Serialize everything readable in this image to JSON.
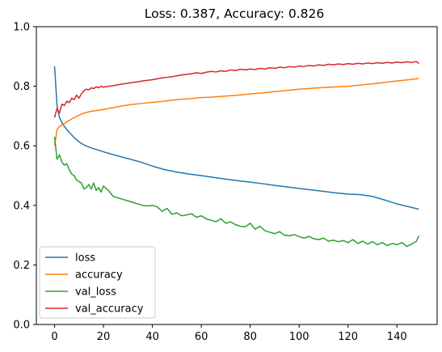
{
  "chart_data": {
    "type": "line",
    "title": "Loss: 0.387, Accuracy: 0.826",
    "xlabel": "",
    "ylabel": "",
    "xlim": [
      -7.45,
      156.45
    ],
    "ylim": [
      0.0,
      1.0
    ],
    "xticks": [
      0,
      20,
      40,
      60,
      80,
      100,
      120,
      140
    ],
    "yticks": [
      0.0,
      0.2,
      0.4,
      0.6,
      0.8,
      1.0
    ],
    "grid": false,
    "legend_position": "lower-left",
    "colors": {
      "loss": "#1f77b4",
      "accuracy": "#ff7f0e",
      "val_loss": "#2ca02c",
      "val_accuracy": "#d62728"
    },
    "series": [
      {
        "name": "loss",
        "x": [
          0,
          1,
          2,
          3,
          4,
          5,
          6,
          8,
          10,
          12,
          15,
          20,
          25,
          30,
          35,
          40,
          45,
          50,
          55,
          60,
          65,
          70,
          75,
          80,
          85,
          90,
          95,
          100,
          105,
          110,
          115,
          120,
          125,
          130,
          135,
          140,
          145,
          149
        ],
        "y": [
          0.867,
          0.735,
          0.695,
          0.678,
          0.665,
          0.655,
          0.645,
          0.628,
          0.613,
          0.603,
          0.593,
          0.58,
          0.568,
          0.557,
          0.546,
          0.532,
          0.52,
          0.512,
          0.505,
          0.5,
          0.494,
          0.488,
          0.483,
          0.478,
          0.473,
          0.467,
          0.462,
          0.457,
          0.452,
          0.447,
          0.442,
          0.438,
          0.436,
          0.43,
          0.418,
          0.405,
          0.395,
          0.387
        ]
      },
      {
        "name": "accuracy",
        "x": [
          0,
          1,
          2,
          3,
          4,
          5,
          6,
          8,
          10,
          12,
          15,
          20,
          25,
          30,
          35,
          40,
          45,
          50,
          55,
          60,
          65,
          70,
          75,
          80,
          85,
          90,
          95,
          100,
          105,
          110,
          115,
          120,
          125,
          130,
          135,
          140,
          145,
          149
        ],
        "y": [
          0.6,
          0.655,
          0.665,
          0.67,
          0.675,
          0.68,
          0.685,
          0.695,
          0.703,
          0.71,
          0.716,
          0.722,
          0.73,
          0.737,
          0.742,
          0.746,
          0.75,
          0.755,
          0.758,
          0.762,
          0.764,
          0.767,
          0.77,
          0.774,
          0.778,
          0.782,
          0.786,
          0.79,
          0.793,
          0.796,
          0.798,
          0.8,
          0.804,
          0.808,
          0.813,
          0.818,
          0.822,
          0.826
        ]
      },
      {
        "name": "val_loss",
        "x": [
          0,
          1,
          2,
          3,
          4,
          5,
          6,
          7,
          8,
          9,
          10,
          11,
          12,
          13,
          14,
          15,
          16,
          17,
          18,
          19,
          20,
          22,
          24,
          26,
          28,
          30,
          32,
          34,
          36,
          38,
          40,
          42,
          44,
          46,
          48,
          50,
          52,
          54,
          56,
          58,
          60,
          62,
          64,
          66,
          68,
          70,
          72,
          74,
          76,
          78,
          80,
          82,
          84,
          86,
          88,
          90,
          92,
          94,
          96,
          98,
          100,
          102,
          104,
          106,
          108,
          110,
          112,
          114,
          116,
          118,
          120,
          122,
          124,
          126,
          128,
          130,
          132,
          134,
          136,
          138,
          140,
          142,
          144,
          146,
          148,
          149
        ],
        "y": [
          0.63,
          0.555,
          0.57,
          0.545,
          0.535,
          0.54,
          0.52,
          0.505,
          0.5,
          0.485,
          0.48,
          0.475,
          0.455,
          0.46,
          0.47,
          0.455,
          0.475,
          0.45,
          0.46,
          0.445,
          0.465,
          0.45,
          0.43,
          0.425,
          0.42,
          0.415,
          0.41,
          0.405,
          0.4,
          0.398,
          0.4,
          0.395,
          0.38,
          0.39,
          0.37,
          0.375,
          0.365,
          0.368,
          0.372,
          0.36,
          0.365,
          0.355,
          0.35,
          0.345,
          0.355,
          0.34,
          0.345,
          0.335,
          0.33,
          0.328,
          0.34,
          0.32,
          0.33,
          0.315,
          0.31,
          0.305,
          0.312,
          0.3,
          0.298,
          0.302,
          0.295,
          0.29,
          0.296,
          0.288,
          0.285,
          0.29,
          0.28,
          0.283,
          0.278,
          0.282,
          0.275,
          0.285,
          0.272,
          0.28,
          0.27,
          0.278,
          0.268,
          0.275,
          0.265,
          0.272,
          0.268,
          0.275,
          0.262,
          0.27,
          0.28,
          0.298
        ]
      },
      {
        "name": "val_accuracy",
        "x": [
          0,
          1,
          2,
          3,
          4,
          5,
          6,
          7,
          8,
          9,
          10,
          11,
          12,
          13,
          14,
          15,
          16,
          17,
          18,
          19,
          20,
          22,
          24,
          26,
          28,
          30,
          32,
          34,
          36,
          38,
          40,
          42,
          44,
          46,
          48,
          50,
          52,
          54,
          56,
          58,
          60,
          62,
          64,
          66,
          68,
          70,
          72,
          74,
          76,
          78,
          80,
          82,
          84,
          86,
          88,
          90,
          92,
          94,
          96,
          98,
          100,
          102,
          104,
          106,
          108,
          110,
          112,
          114,
          116,
          118,
          120,
          122,
          124,
          126,
          128,
          130,
          132,
          134,
          136,
          138,
          140,
          142,
          144,
          146,
          148,
          149
        ],
        "y": [
          0.695,
          0.725,
          0.71,
          0.74,
          0.735,
          0.75,
          0.745,
          0.76,
          0.755,
          0.77,
          0.76,
          0.775,
          0.785,
          0.79,
          0.788,
          0.795,
          0.792,
          0.798,
          0.795,
          0.8,
          0.797,
          0.8,
          0.802,
          0.805,
          0.808,
          0.81,
          0.813,
          0.815,
          0.818,
          0.82,
          0.822,
          0.825,
          0.828,
          0.83,
          0.832,
          0.835,
          0.838,
          0.84,
          0.842,
          0.845,
          0.843,
          0.847,
          0.85,
          0.848,
          0.852,
          0.85,
          0.855,
          0.853,
          0.857,
          0.855,
          0.858,
          0.856,
          0.86,
          0.858,
          0.862,
          0.86,
          0.864,
          0.862,
          0.866,
          0.864,
          0.868,
          0.866,
          0.87,
          0.868,
          0.872,
          0.87,
          0.874,
          0.872,
          0.875,
          0.873,
          0.876,
          0.874,
          0.877,
          0.875,
          0.878,
          0.876,
          0.879,
          0.877,
          0.88,
          0.878,
          0.881,
          0.879,
          0.882,
          0.88,
          0.883,
          0.876
        ]
      }
    ]
  }
}
